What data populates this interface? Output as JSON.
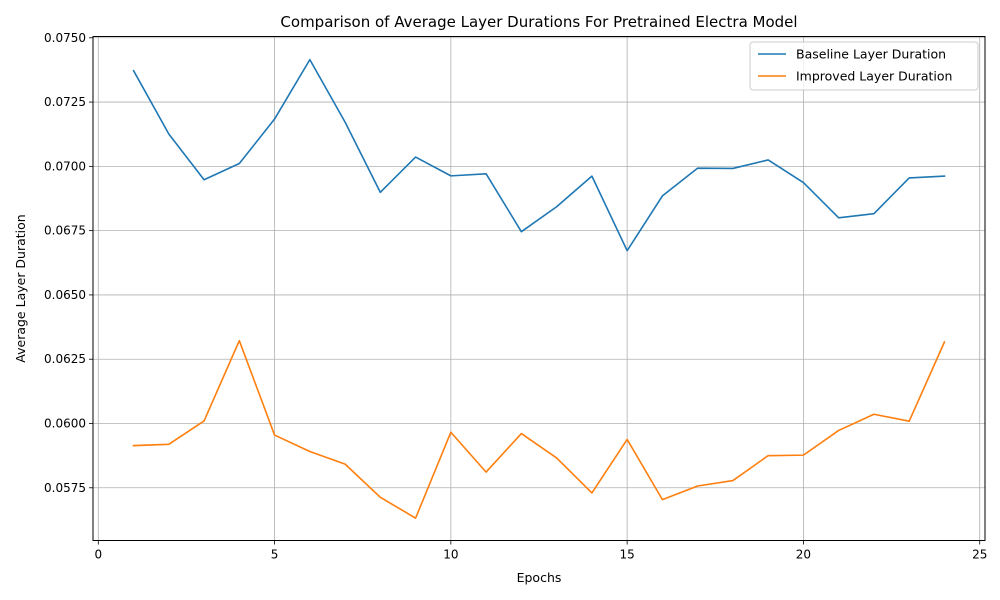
{
  "chart_data": {
    "type": "line",
    "title": "Comparison of Average Layer Durations For Pretrained Electra Model",
    "xlabel": "Epochs",
    "ylabel": "Average Layer Duration",
    "xlim": [
      -0.15,
      25.15
    ],
    "ylim": [
      0.05545,
      0.07505
    ],
    "x_ticks": [
      0,
      5,
      10,
      15,
      20,
      25
    ],
    "y_ticks": [
      0.0575,
      0.06,
      0.0625,
      0.065,
      0.0675,
      0.07,
      0.0725,
      0.075
    ],
    "x_tick_labels": [
      "0",
      "5",
      "10",
      "15",
      "20",
      "25"
    ],
    "y_tick_labels": [
      "0.0575",
      "0.0600",
      "0.0625",
      "0.0650",
      "0.0675",
      "0.0700",
      "0.0725",
      "0.0750"
    ],
    "grid": true,
    "legend_position": "upper-right",
    "x": [
      1,
      2,
      3,
      4,
      5,
      6,
      7,
      8,
      9,
      10,
      11,
      12,
      13,
      14,
      15,
      16,
      17,
      18,
      19,
      20,
      21,
      22,
      23,
      24
    ],
    "series": [
      {
        "name": "Baseline Layer Duration",
        "color": "#1f77b4",
        "values": [
          0.07372,
          0.07126,
          0.06948,
          0.07011,
          0.07184,
          0.07415,
          0.07172,
          0.06899,
          0.07036,
          0.06963,
          0.06971,
          0.06746,
          0.06843,
          0.06962,
          0.06672,
          0.06885,
          0.06993,
          0.06992,
          0.07025,
          0.06937,
          0.068,
          0.06816,
          0.06955,
          0.06962
        ]
      },
      {
        "name": "Improved Layer Duration",
        "color": "#ff7f0e",
        "values": [
          0.05914,
          0.05919,
          0.0601,
          0.06322,
          0.05955,
          0.05891,
          0.05842,
          0.05713,
          0.05632,
          0.05966,
          0.05811,
          0.05961,
          0.05866,
          0.0573,
          0.05938,
          0.05704,
          0.05757,
          0.05778,
          0.05875,
          0.05877,
          0.05973,
          0.06036,
          0.06009,
          0.06317
        ]
      }
    ]
  }
}
